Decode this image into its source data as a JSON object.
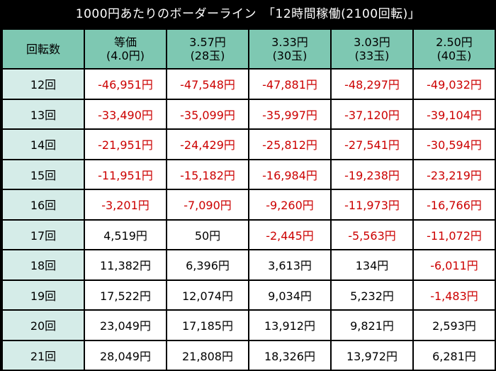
{
  "title": "1000円あたりのボーダーライン　「12時間稼働(2100回転)」",
  "header": {
    "corner": "回転数",
    "columns": [
      {
        "line1": "等価",
        "line2": "(4.0円)"
      },
      {
        "line1": "3.57円",
        "line2": "(28玉)"
      },
      {
        "line1": "3.33円",
        "line2": "(30玉)"
      },
      {
        "line1": "3.03円",
        "line2": "(33玉)"
      },
      {
        "line1": "2.50円",
        "line2": "(40玉)"
      }
    ]
  },
  "rows": [
    {
      "label": "12回",
      "values": [
        "-46,951円",
        "-47,548円",
        "-47,881円",
        "-48,297円",
        "-49,032円"
      ]
    },
    {
      "label": "13回",
      "values": [
        "-33,490円",
        "-35,099円",
        "-35,997円",
        "-37,120円",
        "-39,104円"
      ]
    },
    {
      "label": "14回",
      "values": [
        "-21,951円",
        "-24,429円",
        "-25,812円",
        "-27,541円",
        "-30,594円"
      ]
    },
    {
      "label": "15回",
      "values": [
        "-11,951円",
        "-15,182円",
        "-16,984円",
        "-19,238円",
        "-23,219円"
      ]
    },
    {
      "label": "16回",
      "values": [
        "-3,201円",
        "-7,090円",
        "-9,260円",
        "-11,973円",
        "-16,766円"
      ]
    },
    {
      "label": "17回",
      "values": [
        "4,519円",
        "50円",
        "-2,445円",
        "-5,563円",
        "-11,072円"
      ]
    },
    {
      "label": "18回",
      "values": [
        "11,382円",
        "6,396円",
        "3,613円",
        "134円",
        "-6,011円"
      ]
    },
    {
      "label": "19回",
      "values": [
        "17,522円",
        "12,074円",
        "9,034円",
        "5,232円",
        "-1,483円"
      ]
    },
    {
      "label": "20回",
      "values": [
        "23,049円",
        "17,185円",
        "13,912円",
        "9,821円",
        "2,593円"
      ]
    },
    {
      "label": "21回",
      "values": [
        "28,049円",
        "21,808円",
        "18,326円",
        "13,972円",
        "6,281円"
      ]
    }
  ],
  "colors": {
    "background": "#000000",
    "header_bg": "#7ec8b2",
    "row_label_bg": "#d5ece8",
    "cell_bg": "#ffffff",
    "negative_text": "#cc0000",
    "positive_text": "#000000"
  }
}
